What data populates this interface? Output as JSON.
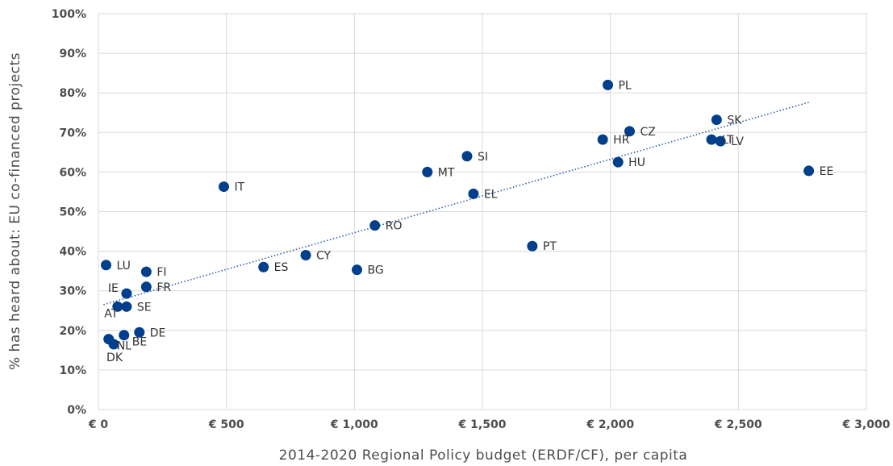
{
  "chart_data": {
    "type": "scatter",
    "xlabel": "2014-2020 Regional Policy budget (ERDF/CF), per capita",
    "ylabel": "% has heard about: EU co-financed projects",
    "xlim": [
      0,
      3000
    ],
    "ylim": [
      0,
      100
    ],
    "x_ticks": [
      0,
      500,
      1000,
      1500,
      2000,
      2500,
      3000
    ],
    "x_tick_labels": [
      "€ 0",
      "€ 500",
      "€ 1,000",
      "€ 1,500",
      "€ 2,000",
      "€ 2,500",
      "€ 3,000"
    ],
    "y_ticks": [
      0,
      10,
      20,
      30,
      40,
      50,
      60,
      70,
      80,
      90,
      100
    ],
    "y_tick_labels": [
      "0%",
      "10%",
      "20%",
      "30%",
      "40%",
      "50%",
      "60%",
      "70%",
      "80%",
      "90%",
      "100%"
    ],
    "grid": true,
    "marker_color": "#003f8c",
    "trendline": {
      "style": "dotted",
      "color": "#2e5fa3",
      "x": [
        20,
        2780
      ],
      "y": [
        26.5,
        77.7
      ]
    },
    "points": [
      {
        "label": "LU",
        "x": 30,
        "y": 36.5,
        "label_pos": "right"
      },
      {
        "label": "FI",
        "x": 187,
        "y": 34.8,
        "label_pos": "right"
      },
      {
        "label": "IE",
        "x": 110,
        "y": 29.3,
        "label_pos": "left"
      },
      {
        "label": "FR",
        "x": 187,
        "y": 31.0,
        "label_pos": "right"
      },
      {
        "label": "AT",
        "x": 75,
        "y": 26.0,
        "label_pos": "below-left"
      },
      {
        "label": "SE",
        "x": 110,
        "y": 26.0,
        "label_pos": "right"
      },
      {
        "label": "DE",
        "x": 160,
        "y": 19.5,
        "label_pos": "right"
      },
      {
        "label": "BE",
        "x": 100,
        "y": 18.8,
        "label_pos": "below-right"
      },
      {
        "label": "NL",
        "x": 40,
        "y": 17.8,
        "label_pos": "below-right"
      },
      {
        "label": "DK",
        "x": 60,
        "y": 16.5,
        "label_pos": "below"
      },
      {
        "label": "IT",
        "x": 490,
        "y": 56.3,
        "label_pos": "right"
      },
      {
        "label": "ES",
        "x": 645,
        "y": 36.0,
        "label_pos": "right"
      },
      {
        "label": "CY",
        "x": 810,
        "y": 39.0,
        "label_pos": "right"
      },
      {
        "label": "BG",
        "x": 1010,
        "y": 35.3,
        "label_pos": "right"
      },
      {
        "label": "RO",
        "x": 1080,
        "y": 46.5,
        "label_pos": "right"
      },
      {
        "label": "MT",
        "x": 1285,
        "y": 60.0,
        "label_pos": "right"
      },
      {
        "label": "SI",
        "x": 1440,
        "y": 64.0,
        "label_pos": "right"
      },
      {
        "label": "EL",
        "x": 1465,
        "y": 54.5,
        "label_pos": "right"
      },
      {
        "label": "PT",
        "x": 1695,
        "y": 41.3,
        "label_pos": "right"
      },
      {
        "label": "PL",
        "x": 1990,
        "y": 82.0,
        "label_pos": "right"
      },
      {
        "label": "HR",
        "x": 1970,
        "y": 68.2,
        "label_pos": "right"
      },
      {
        "label": "CZ",
        "x": 2075,
        "y": 70.3,
        "label_pos": "right"
      },
      {
        "label": "HU",
        "x": 2030,
        "y": 62.5,
        "label_pos": "right"
      },
      {
        "label": "SK",
        "x": 2415,
        "y": 73.2,
        "label_pos": "right"
      },
      {
        "label": "LT",
        "x": 2395,
        "y": 68.2,
        "label_pos": "right"
      },
      {
        "label": "LV",
        "x": 2430,
        "y": 67.8,
        "label_pos": "right"
      },
      {
        "label": "EE",
        "x": 2775,
        "y": 60.3,
        "label_pos": "right"
      }
    ]
  }
}
